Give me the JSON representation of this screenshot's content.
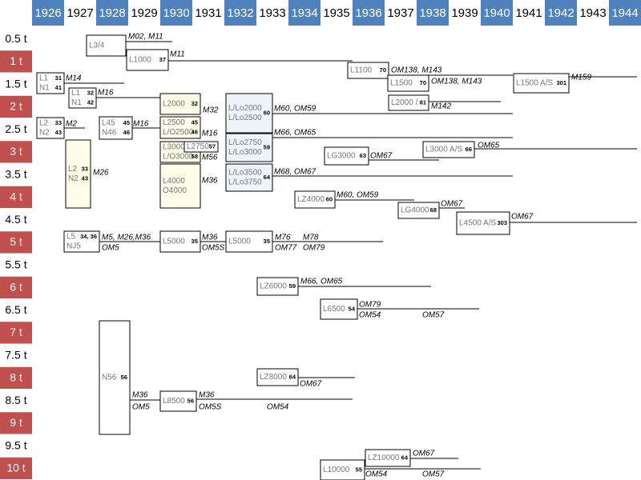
{
  "header": {
    "years": [
      "1926",
      "1927",
      "1928",
      "1929",
      "1930",
      "1931",
      "1932",
      "1933",
      "1934",
      "1935",
      "1936",
      "1937",
      "1938",
      "1939",
      "1940",
      "1941",
      "1942",
      "1943",
      "1944"
    ]
  },
  "tonnages": [
    "0.5 t",
    "1 t",
    "1.5 t",
    "2 t",
    "2.5 t",
    "3 t",
    "3.5 t",
    "4 t",
    "4.5 t",
    "5 t",
    "5.5 t",
    "6 t",
    "6.5 t",
    "7 t",
    "7.5 t",
    "8 t",
    "8.5 t",
    "9 t",
    "9.5 t",
    "10 t"
  ],
  "models": [
    {
      "labels": [
        "L3/4"
      ],
      "engines": [],
      "notes": [
        "M02, M11"
      ]
    },
    {
      "labels": [
        "L1000"
      ],
      "engines": [
        "37"
      ],
      "notes": [
        "M11"
      ]
    },
    {
      "labels": [
        "L1100"
      ],
      "engines": [
        "70"
      ],
      "notes": [
        "OM138, M143"
      ]
    },
    {
      "labels": [
        "L1500"
      ],
      "engines": [
        "70"
      ],
      "notes": [
        "OM138, M143"
      ]
    },
    {
      "labels": [
        "L1500 A/S"
      ],
      "engines": [
        "301"
      ],
      "notes": [
        "M159"
      ]
    },
    {
      "labels": [
        "L1",
        "N1"
      ],
      "engines": [
        "31",
        "41"
      ],
      "notes": [
        "M14"
      ]
    },
    {
      "labels": [
        "L1",
        "N1"
      ],
      "engines": [
        "32",
        "42"
      ],
      "notes": [
        "M16"
      ]
    },
    {
      "labels": [
        "L2000"
      ],
      "engines": [
        "32"
      ],
      "notes": [
        "M32"
      ]
    },
    {
      "labels": [
        "L/Lo2000",
        "L/Lo2500"
      ],
      "engines": [
        "60"
      ],
      "notes": [
        "M60, OM59"
      ]
    },
    {
      "labels": [
        "L2000 /"
      ],
      "engines": [
        "81"
      ],
      "notes": [
        "M142"
      ]
    },
    {
      "labels": [
        "L2",
        "N2"
      ],
      "engines": [
        "33",
        "43"
      ],
      "notes": [
        "M2"
      ]
    },
    {
      "labels": [
        "L45",
        "N46"
      ],
      "engines": [
        "45",
        "46"
      ],
      "notes": [
        "M16"
      ]
    },
    {
      "labels": [
        "L2500",
        "L/O2500"
      ],
      "engines": [
        "45",
        "46"
      ],
      "notes": [
        "M16"
      ]
    },
    {
      "labels": [
        "L/Lo2750",
        "L/Lo3000"
      ],
      "engines": [
        "59"
      ],
      "notes": [
        "M66, OM65"
      ]
    },
    {
      "labels": [
        "L3000",
        "L/O3000"
      ],
      "engines": [
        "58"
      ],
      "notes": [
        "M56"
      ]
    },
    {
      "labels": [
        "L2750"
      ],
      "engines": [
        "57"
      ],
      "notes": []
    },
    {
      "labels": [
        "LG3000"
      ],
      "engines": [
        "63"
      ],
      "notes": [
        "OM67"
      ]
    },
    {
      "labels": [
        "L3000 A/S"
      ],
      "engines": [
        "66"
      ],
      "notes": [
        "OM65"
      ]
    },
    {
      "labels": [
        "L2",
        "N2"
      ],
      "engines": [
        "33",
        "43"
      ],
      "notes": [
        "M26"
      ]
    },
    {
      "labels": [
        "L4000",
        "O4000"
      ],
      "engines": [],
      "notes": [
        "M36"
      ]
    },
    {
      "labels": [
        "L/Lo3500",
        "L/Lo3750"
      ],
      "engines": [
        "64"
      ],
      "notes": [
        "M68, OM67"
      ]
    },
    {
      "labels": [
        "LZ4000"
      ],
      "engines": [
        "60"
      ],
      "notes": [
        "M60, OM59"
      ]
    },
    {
      "labels": [
        "LG4000"
      ],
      "engines": [
        "68"
      ],
      "notes": [
        "OM67"
      ]
    },
    {
      "labels": [
        "L4500 A/S"
      ],
      "engines": [
        "303"
      ],
      "notes": [
        "OM67"
      ]
    },
    {
      "labels": [
        "L5",
        "NJ5"
      ],
      "engines": [
        "34, 36"
      ],
      "notes": [
        "M5, M26,M36",
        "OM5"
      ]
    },
    {
      "labels": [
        "L5000"
      ],
      "engines": [
        "35"
      ],
      "notes": [
        "M36",
        "OM5S"
      ]
    },
    {
      "labels": [
        "L5000"
      ],
      "engines": [
        "35"
      ],
      "notes": [
        "M76",
        "OM77",
        "M78",
        "OM79"
      ]
    },
    {
      "labels": [
        "LZ6000"
      ],
      "engines": [
        "59"
      ],
      "notes": [
        "M66, OM65"
      ]
    },
    {
      "labels": [
        "L6500"
      ],
      "engines": [
        "54"
      ],
      "notes": [
        "OM79",
        "OM54",
        "OM57"
      ]
    },
    {
      "labels": [
        "LZ8000"
      ],
      "engines": [
        "64"
      ],
      "notes": [
        "OM67"
      ]
    },
    {
      "labels": [
        "N56"
      ],
      "engines": [
        "56"
      ],
      "notes": [
        "M36",
        "OM5"
      ]
    },
    {
      "labels": [
        "L8500"
      ],
      "engines": [
        "56"
      ],
      "notes": [
        "M36",
        "OM5S",
        "OM54"
      ]
    },
    {
      "labels": [
        "LZ10000"
      ],
      "engines": [
        "64"
      ],
      "notes": [
        "OM67"
      ]
    },
    {
      "labels": [
        "L10000"
      ],
      "engines": [
        "55"
      ],
      "notes": [
        "OM54",
        "OM57"
      ]
    }
  ]
}
